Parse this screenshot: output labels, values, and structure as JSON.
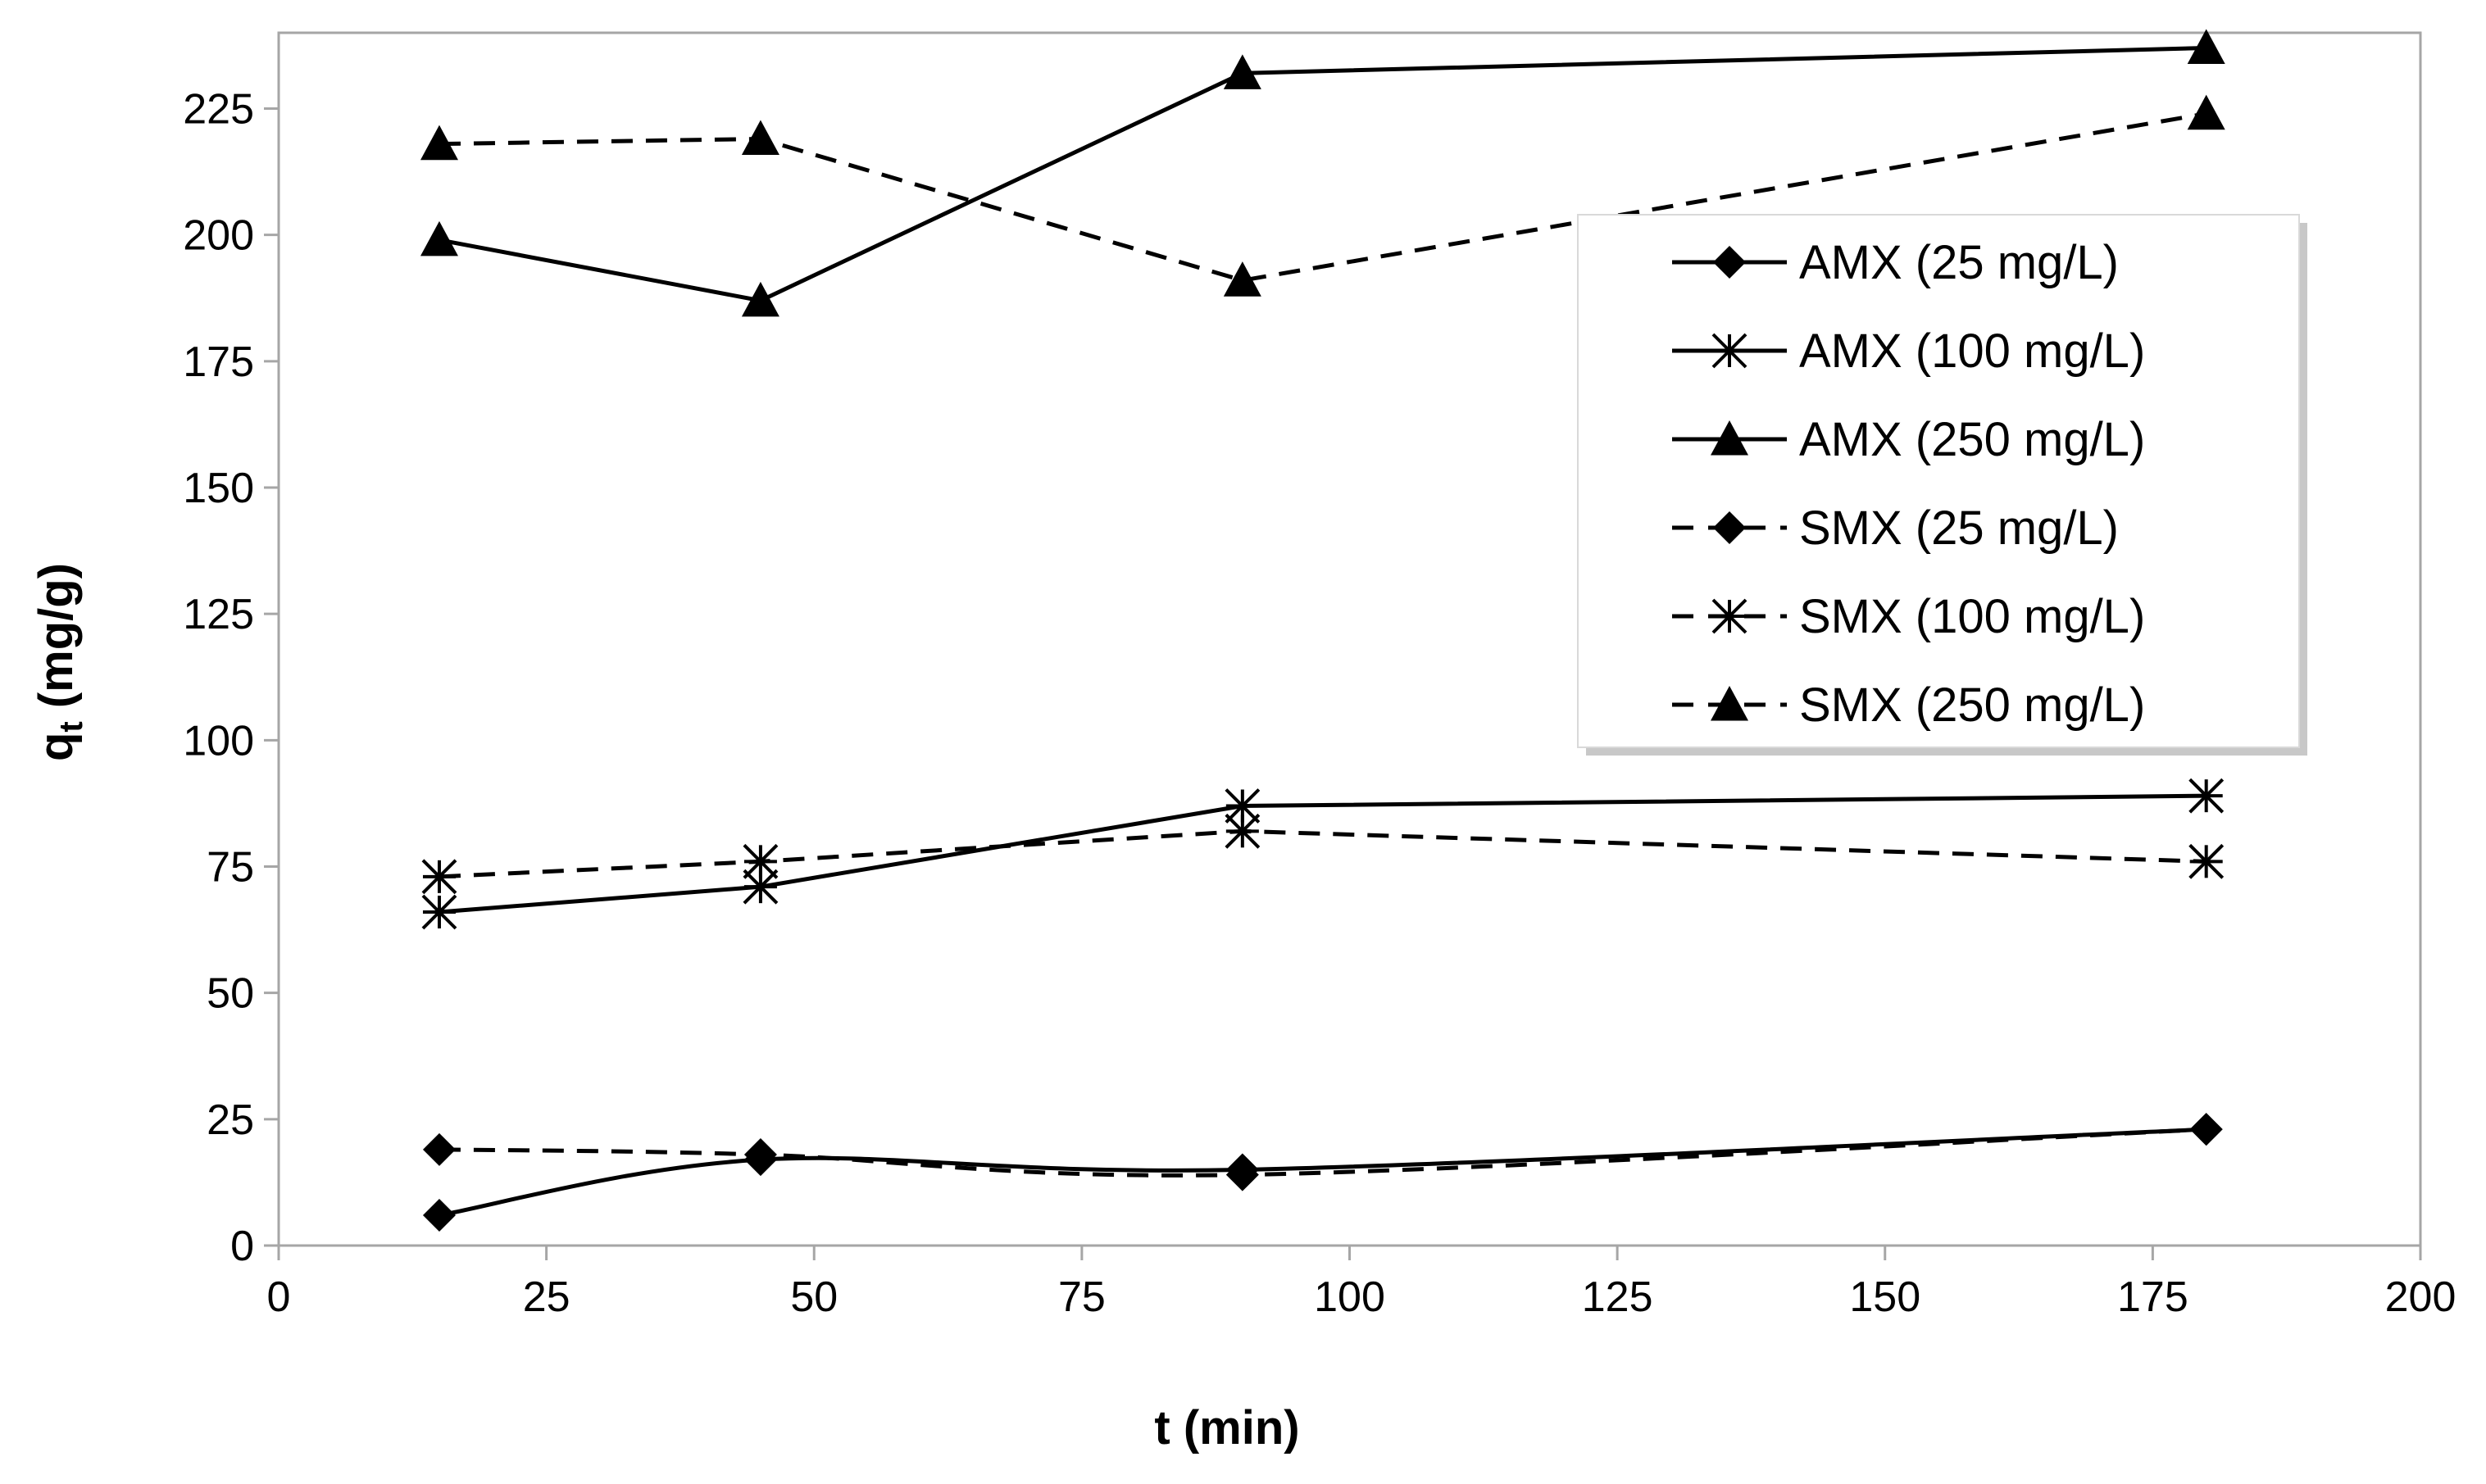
{
  "chart_data": {
    "type": "line",
    "title": "",
    "xlabel": "t (min)",
    "ylabel_main": "q",
    "ylabel_sub": "t",
    "ylabel_unit": " (mg/g)",
    "xlim": [
      0,
      200
    ],
    "ylim": [
      0,
      240
    ],
    "xticks": [
      0,
      25,
      50,
      75,
      100,
      125,
      150,
      175,
      200
    ],
    "yticks": [
      0,
      25,
      50,
      75,
      100,
      125,
      150,
      175,
      200,
      225
    ],
    "grid": false,
    "legend_position": "right",
    "x": [
      15,
      45,
      90,
      180
    ],
    "series": [
      {
        "name": "AMX (25 mg/L)",
        "values": [
          6,
          17,
          15,
          23
        ],
        "style": "solid",
        "marker": "diamond",
        "smooth": true
      },
      {
        "name": "AMX (100 mg/L)",
        "values": [
          66,
          71,
          87,
          89
        ],
        "style": "solid",
        "marker": "asterisk",
        "smooth": false
      },
      {
        "name": "AMX (250 mg/L)",
        "values": [
          199,
          187,
          232,
          237
        ],
        "style": "solid",
        "marker": "triangle",
        "smooth": false
      },
      {
        "name": "SMX (25 mg/L)",
        "values": [
          19,
          18,
          14,
          23
        ],
        "style": "dashed",
        "marker": "diamond",
        "smooth": true
      },
      {
        "name": "SMX (100 mg/L)",
        "values": [
          73,
          76,
          82,
          76
        ],
        "style": "dashed",
        "marker": "asterisk",
        "smooth": false
      },
      {
        "name": "SMX (250 mg/L)",
        "values": [
          218,
          219,
          191,
          224
        ],
        "style": "dashed",
        "marker": "triangle",
        "smooth": false
      }
    ],
    "colors": {
      "line": "#000000",
      "axis": "#a6a6a6",
      "background": "#ffffff"
    }
  }
}
